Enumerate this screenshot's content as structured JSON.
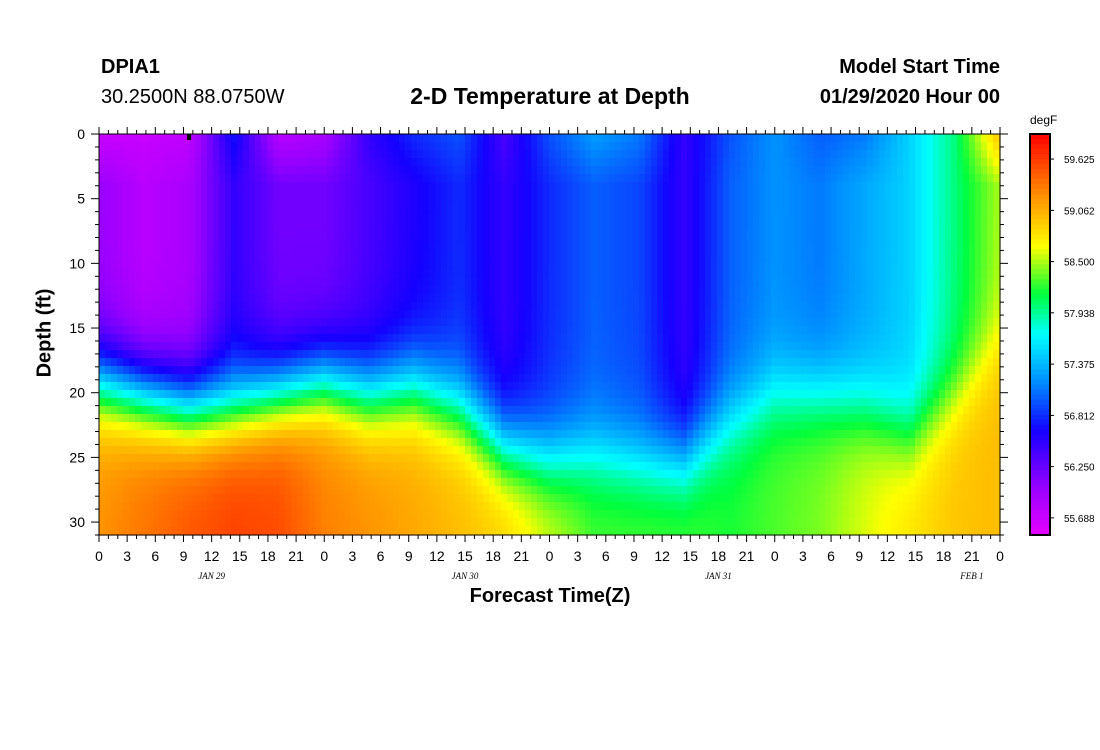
{
  "header": {
    "station": "DPIA1",
    "coordinates": "30.2500N 88.0750W",
    "title": "2-D Temperature at Depth",
    "model_start_label": "Model Start Time",
    "model_start_value": "01/29/2020 Hour 00"
  },
  "chart_data": {
    "type": "heatmap",
    "title": "2-D Temperature at Depth",
    "xlabel": "Forecast Time(Z)",
    "ylabel": "Depth (ft)",
    "x_tick_labels": [
      "0",
      "3",
      "6",
      "9",
      "12",
      "15",
      "18",
      "21",
      "0",
      "3",
      "6",
      "9",
      "12",
      "15",
      "18",
      "21",
      "0",
      "3",
      "6",
      "9",
      "12",
      "15",
      "18",
      "21",
      "0",
      "3",
      "6",
      "9",
      "12",
      "15",
      "18",
      "21",
      "0"
    ],
    "date_labels": [
      {
        "label": "JAN 29",
        "hour": 12
      },
      {
        "label": "JAN 30",
        "hour": 39
      },
      {
        "label": "JAN 31",
        "hour": 66
      },
      {
        "label": "FEB 1",
        "hour": 93
      }
    ],
    "xlim_hours": [
      0,
      96
    ],
    "ylim_depth_ft": [
      0,
      31
    ],
    "y_ticks": [
      0,
      5,
      10,
      15,
      20,
      25,
      30
    ],
    "colorbar": {
      "units": "degF",
      "min": 55.5,
      "max": 59.9,
      "tick_labels": [
        "59.625",
        "59.062",
        "58.500",
        "57.938",
        "57.375",
        "56.812",
        "56.250",
        "55.688"
      ]
    },
    "surface_temp_degF": [
      55.7,
      55.7,
      55.75,
      56.7,
      55.8,
      55.9,
      56.5,
      56.8,
      56.95,
      56.4,
      56.95,
      57.25,
      57.1,
      56.5,
      56.95,
      57.2,
      57.0,
      57.1,
      57.5,
      58.0,
      59.0
    ],
    "shallow_temp_degF": [
      56.0,
      55.8,
      55.9,
      56.5,
      56.2,
      56.2,
      56.4,
      56.6,
      56.8,
      56.5,
      56.8,
      57.0,
      56.9,
      56.5,
      57.0,
      57.2,
      57.1,
      57.3,
      57.5,
      58.0,
      58.5
    ],
    "bottom_temp_degF": [
      59.2,
      59.35,
      59.5,
      59.6,
      59.55,
      59.3,
      59.2,
      59.1,
      59.0,
      58.9,
      58.6,
      58.3,
      58.3,
      58.3,
      58.2,
      58.3,
      58.4,
      58.6,
      58.8,
      58.95,
      59.0
    ],
    "thermocline_depth_ft": [
      16.0,
      17.0,
      18.0,
      18.0,
      17.0,
      16.0,
      17.0,
      16.5,
      18.0,
      21.0,
      22.0,
      21.5,
      22.0,
      22.0,
      19.0,
      17.0,
      17.0,
      18.0,
      20.0,
      17.0,
      13.0
    ],
    "timeseries_hours": [
      0,
      4.8,
      9.6,
      14.4,
      19.2,
      24,
      28.8,
      33.6,
      38.4,
      43.2,
      48,
      52.8,
      57.6,
      62.4,
      67.2,
      72,
      76.8,
      81.6,
      86.4,
      91.2,
      96
    ]
  }
}
